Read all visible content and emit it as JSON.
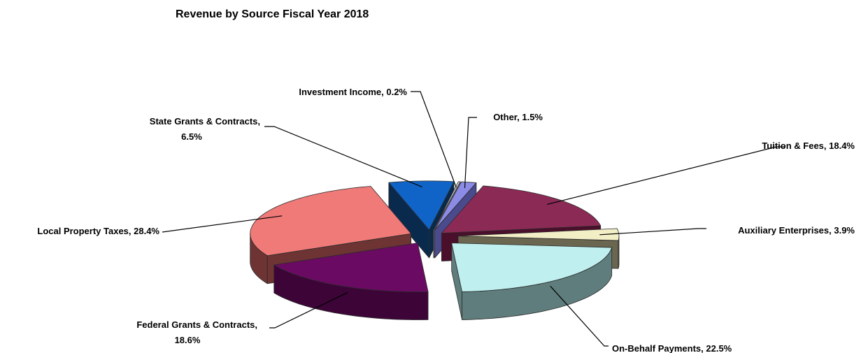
{
  "chart_data": {
    "type": "pie",
    "title": "Revenue by Source Fiscal Year 2018",
    "slices": [
      {
        "name": "Tuition & Fees",
        "value": 18.4,
        "label_lines": [
          "Tuition & Fees, 18.4%"
        ],
        "top_color": "#8c2a56",
        "side_color": "#4a0f2a"
      },
      {
        "name": "Auxiliary Enterprises",
        "value": 3.9,
        "label_lines": [
          "Auxiliary Enterprises, 3.9%"
        ],
        "top_color": "#f2eec6",
        "side_color": "#6b6650"
      },
      {
        "name": "On-Behalf Payments",
        "value": 22.5,
        "label_lines": [
          "On-Behalf Payments, 22.5%"
        ],
        "top_color": "#bff0ef",
        "side_color": "#5f7d7c"
      },
      {
        "name": "Federal Grants & Contracts",
        "value": 18.6,
        "label_lines": [
          "Federal Grants & Contracts,",
          "18.6%"
        ],
        "top_color": "#6b0a63",
        "side_color": "#3d0438"
      },
      {
        "name": "Local Property Taxes",
        "value": 28.4,
        "label_lines": [
          "Local Property Taxes, 28.4%"
        ],
        "top_color": "#f07a78",
        "side_color": "#6e3434"
      },
      {
        "name": "State Grants & Contracts",
        "value": 6.5,
        "label_lines": [
          "State Grants & Contracts,",
          "6.5%"
        ],
        "top_color": "#1064c8",
        "side_color": "#0a2a4d"
      },
      {
        "name": "Investment Income",
        "value": 0.2,
        "label_lines": [
          "Investment Income, 0.2%"
        ],
        "top_color": "#d8d8d8",
        "side_color": "#7a7a7a"
      },
      {
        "name": "Other",
        "value": 1.5,
        "label_lines": [
          "Other, 1.5%"
        ],
        "top_color": "#8c8ce6",
        "side_color": "#4a4a8c"
      }
    ]
  }
}
